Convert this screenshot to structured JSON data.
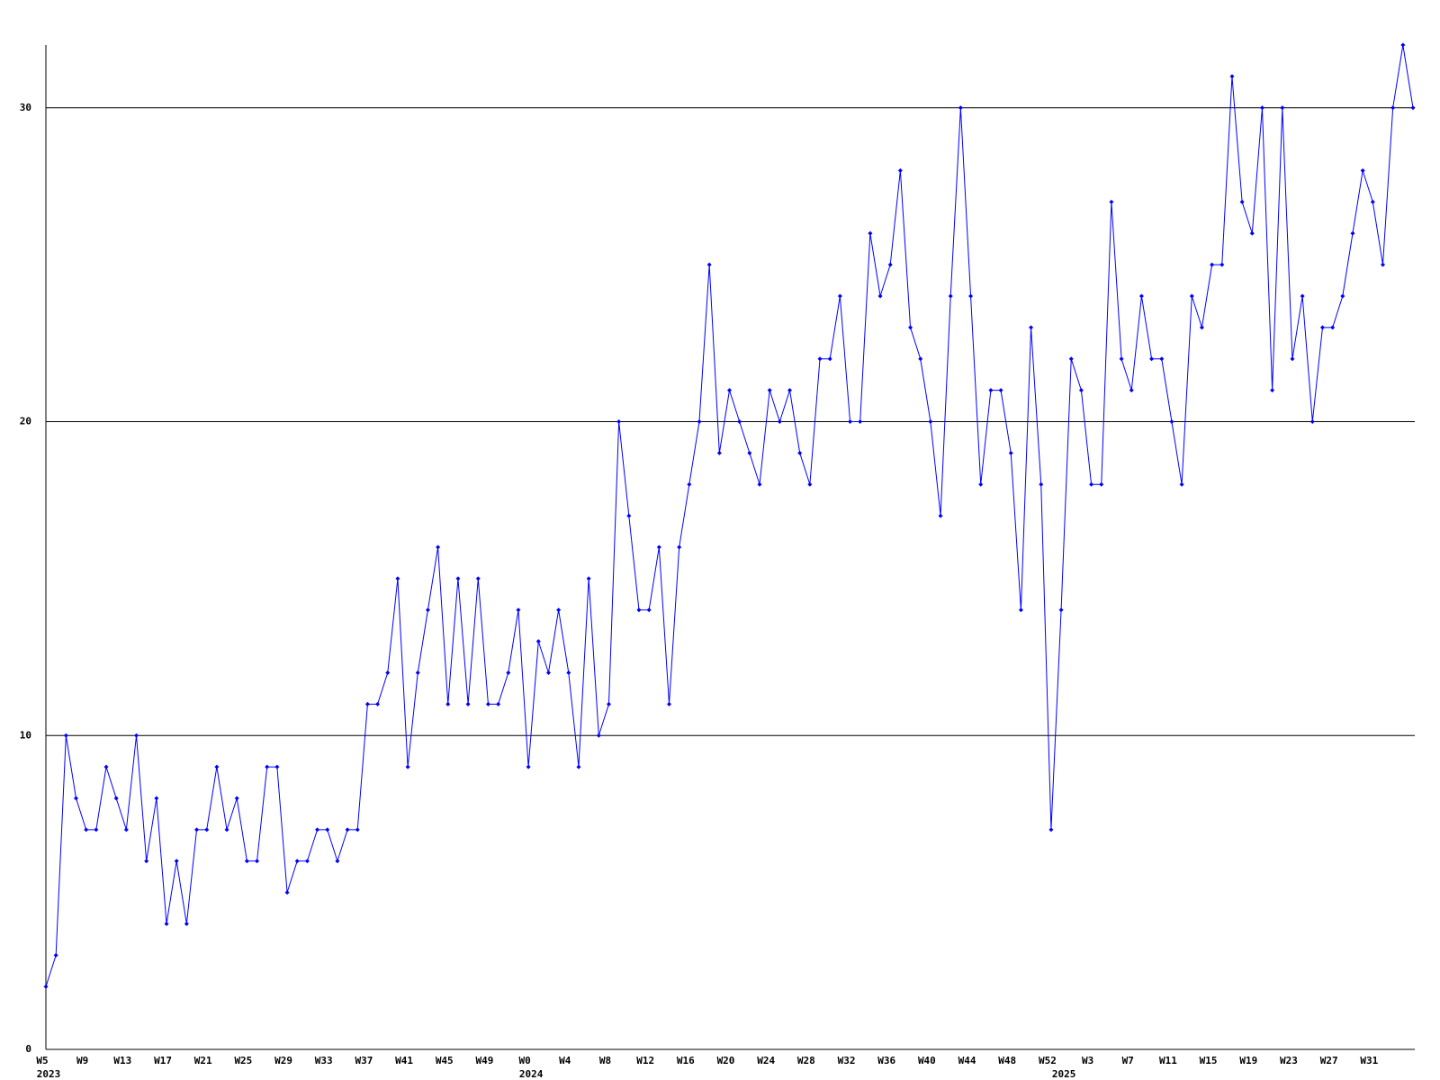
{
  "chart_data": {
    "type": "line",
    "categories": [
      "W5",
      null,
      null,
      null,
      "W9",
      null,
      null,
      null,
      "W13",
      null,
      null,
      null,
      "W17",
      null,
      null,
      null,
      "W21",
      null,
      null,
      null,
      "W25",
      null,
      null,
      null,
      "W29",
      null,
      null,
      null,
      "W33",
      null,
      null,
      null,
      "W37",
      null,
      null,
      null,
      "W41",
      null,
      null,
      null,
      "W45",
      null,
      null,
      null,
      "W49",
      null,
      null,
      null,
      "W0",
      null,
      null,
      null,
      "W4",
      null,
      null,
      null,
      "W8",
      null,
      null,
      null,
      "W12",
      null,
      null,
      null,
      "W16",
      null,
      null,
      null,
      "W20",
      null,
      null,
      null,
      "W24",
      null,
      null,
      null,
      "W28",
      null,
      null,
      null,
      "W32",
      null,
      null,
      null,
      "W36",
      null,
      null,
      null,
      "W40",
      null,
      null,
      null,
      "W44",
      null,
      null,
      null,
      "W48",
      null,
      null,
      null,
      "W52",
      null,
      null,
      null,
      "W3",
      null,
      null,
      null,
      "W7",
      null,
      null,
      null,
      "W11",
      null,
      null,
      null,
      "W15",
      null,
      null,
      null,
      "W19",
      null,
      null,
      null,
      "W23",
      null,
      null,
      null,
      "W27",
      null,
      null,
      null,
      "W31",
      null,
      null,
      null,
      null
    ],
    "category_years": [
      "2023",
      null,
      null,
      null,
      null,
      null,
      null,
      null,
      null,
      null,
      null,
      null,
      null,
      null,
      null,
      null,
      null,
      null,
      null,
      null,
      null,
      null,
      null,
      null,
      null,
      null,
      null,
      null,
      null,
      null,
      null,
      null,
      null,
      null,
      null,
      null,
      null,
      null,
      null,
      null,
      null,
      null,
      null,
      null,
      null,
      null,
      null,
      null,
      "2024",
      null,
      null,
      null,
      null,
      null,
      null,
      null,
      null,
      null,
      null,
      null,
      null,
      null,
      null,
      null,
      null,
      null,
      null,
      null,
      null,
      null,
      null,
      null,
      null,
      null,
      null,
      null,
      null,
      null,
      null,
      null,
      null,
      null,
      null,
      null,
      null,
      null,
      null,
      null,
      null,
      null,
      null,
      null,
      null,
      null,
      null,
      null,
      null,
      null,
      null,
      null,
      null,
      "2025",
      null,
      null,
      null,
      null,
      null,
      null,
      null,
      null,
      null,
      null,
      null,
      null,
      null,
      null,
      null,
      null,
      null,
      null,
      null,
      null,
      null,
      null,
      null,
      null,
      null,
      null,
      null,
      null,
      null,
      null,
      null,
      null,
      null,
      null,
      null
    ],
    "series": [
      {
        "color": "#0000ff",
        "values": [
          2,
          3,
          10,
          8,
          7,
          7,
          9,
          8,
          7,
          10,
          6,
          8,
          4,
          6,
          4,
          7,
          7,
          9,
          7,
          8,
          6,
          6,
          9,
          9,
          5,
          6,
          6,
          7,
          7,
          6,
          7,
          7,
          11,
          11,
          12,
          15,
          9,
          12,
          14,
          16,
          11,
          15,
          11,
          15,
          11,
          11,
          12,
          14,
          9,
          13,
          12,
          14,
          12,
          9,
          15,
          10,
          11,
          20,
          17,
          14,
          14,
          16,
          11,
          16,
          18,
          20,
          25,
          19,
          21,
          20,
          19,
          18,
          21,
          20,
          21,
          19,
          18,
          22,
          22,
          24,
          20,
          20,
          26,
          24,
          25,
          28,
          23,
          22,
          20,
          17,
          24,
          30,
          24,
          18,
          21,
          21,
          19,
          14,
          23,
          18,
          7,
          14,
          22,
          21,
          18,
          18,
          27,
          22,
          21,
          24,
          22,
          22,
          20,
          18,
          24,
          23,
          25,
          25,
          31,
          27,
          26,
          30,
          21,
          30,
          22,
          24,
          20,
          23,
          23,
          24,
          26,
          28,
          27,
          25,
          30,
          32,
          30
        ]
      }
    ],
    "ylim": [
      0,
      32
    ],
    "yticks": [
      0,
      10,
      20,
      30
    ],
    "grid": true
  }
}
